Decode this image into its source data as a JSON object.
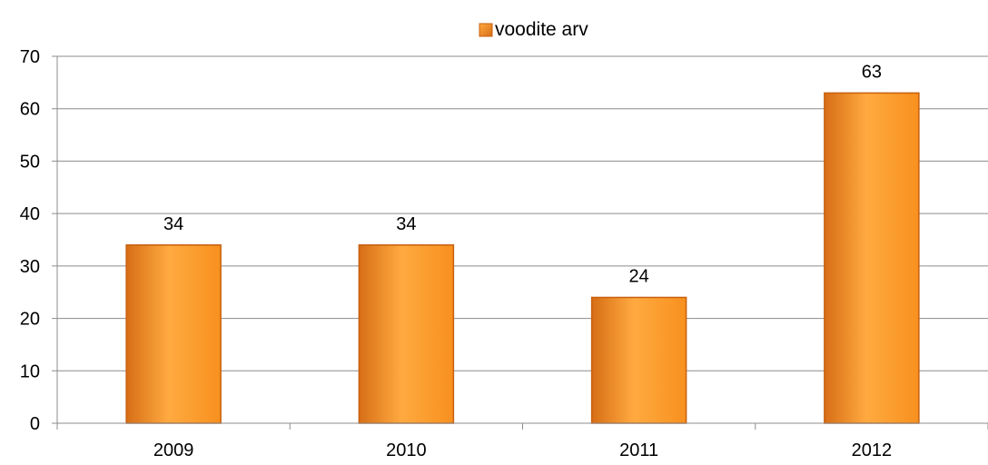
{
  "chart_data": {
    "type": "bar",
    "categories": [
      "2009",
      "2010",
      "2011",
      "2012"
    ],
    "series": [
      {
        "name": "voodite arv",
        "values": [
          34,
          34,
          24,
          63
        ]
      }
    ],
    "data_labels": [
      "34",
      "34",
      "24",
      "63"
    ],
    "y_ticks": [
      "0",
      "10",
      "20",
      "30",
      "40",
      "50",
      "60",
      "70"
    ],
    "ylim": [
      0,
      70
    ],
    "grid": true,
    "legend_position": "top-center",
    "title": "",
    "xlabel": "",
    "ylabel": ""
  },
  "colors": {
    "bar_light": "#FFAA40",
    "bar_mid": "#F7901E",
    "bar_dark": "#D76E16",
    "bar_edge": "#C8600F",
    "grid": "#8C8C8C",
    "axis": "#8C8C8C",
    "text": "#000000"
  }
}
